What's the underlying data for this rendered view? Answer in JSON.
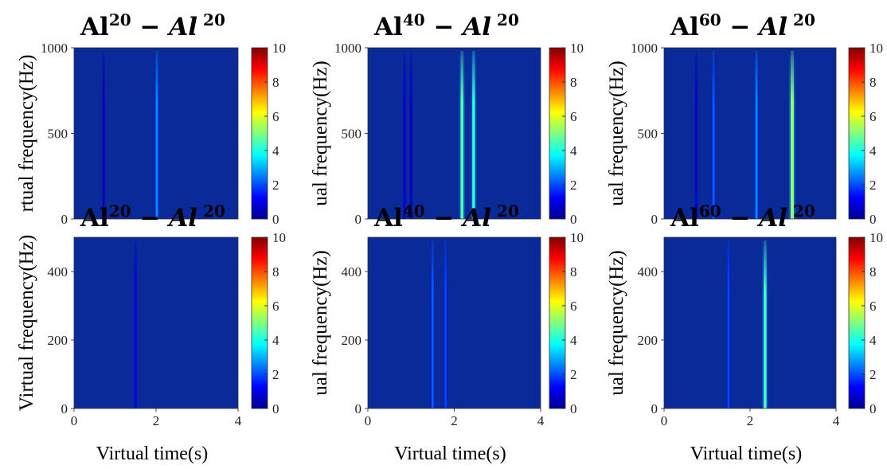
{
  "chart_data": [
    {
      "type": "heatmap",
      "title": {
        "base": "Al",
        "sup": "20",
        "dash": "−",
        "base2": "Al",
        "sup2": "20"
      },
      "ylabel": "rtual frequency(Hz)",
      "xlabel": "",
      "x_ticks": [],
      "y_ticks": [
        "0",
        "500",
        "1000"
      ],
      "ylim": [
        0,
        1000
      ],
      "xlim": [
        0,
        4
      ],
      "colorbar": {
        "min": 0,
        "max": 10,
        "ticks": [
          "0",
          "2",
          "4",
          "6",
          "8",
          "10"
        ]
      },
      "lines": [
        {
          "t": 0.72,
          "intensity": 0.6
        },
        {
          "t": 2.02,
          "intensity": 2.6
        }
      ]
    },
    {
      "type": "heatmap",
      "title": {
        "base": "Al",
        "sup": "40",
        "dash": "−",
        "base2": "Al",
        "sup2": "20"
      },
      "ylabel": "ual frequency(Hz)",
      "xlabel": "",
      "x_ticks": [],
      "y_ticks": [
        "0",
        "500",
        "1000"
      ],
      "ylim": [
        0,
        1000
      ],
      "xlim": [
        0,
        4
      ],
      "colorbar": {
        "min": 0,
        "max": 10,
        "ticks": [
          "0",
          "2",
          "4",
          "6",
          "8",
          "10"
        ]
      },
      "lines": [
        {
          "t": 0.85,
          "intensity": 0.9
        },
        {
          "t": 1.0,
          "intensity": 0.7
        },
        {
          "t": 2.18,
          "intensity": 4.6
        },
        {
          "t": 2.45,
          "intensity": 4.2
        }
      ]
    },
    {
      "type": "heatmap",
      "title": {
        "base": "Al",
        "sup": "60",
        "dash": "−",
        "base2": "Al",
        "sup2": "20"
      },
      "ylabel": "ual frequency(Hz)",
      "xlabel": "",
      "x_ticks": [],
      "y_ticks": [
        "0",
        "500",
        "1000"
      ],
      "ylim": [
        0,
        1000
      ],
      "xlim": [
        0,
        4
      ],
      "colorbar": {
        "min": 0,
        "max": 10,
        "ticks": [
          "0",
          "2",
          "4",
          "6",
          "8",
          "10"
        ]
      },
      "lines": [
        {
          "t": 0.75,
          "intensity": 0.8
        },
        {
          "t": 1.15,
          "intensity": 2.2
        },
        {
          "t": 2.15,
          "intensity": 2.6
        },
        {
          "t": 2.98,
          "intensity": 5.2
        }
      ]
    },
    {
      "type": "heatmap",
      "title": {
        "base": "Al",
        "sup": "20",
        "dash": "−",
        "base2": "Al",
        "sup2": "20"
      },
      "ylabel": "Virtual frequency(Hz)",
      "xlabel": "Virtual time(s)",
      "x_ticks": [
        "0",
        "2",
        "4"
      ],
      "y_ticks": [
        "0",
        "200",
        "400"
      ],
      "ylim": [
        0,
        500
      ],
      "xlim": [
        0,
        4
      ],
      "colorbar": {
        "min": 0,
        "max": 10,
        "ticks": [
          "0",
          "2",
          "4",
          "6",
          "8",
          "10"
        ]
      },
      "lines": [
        {
          "t": 1.5,
          "intensity": 0.9
        }
      ]
    },
    {
      "type": "heatmap",
      "title": {
        "base": "Al",
        "sup": "40",
        "dash": "−",
        "base2": "Al",
        "sup2": "20"
      },
      "ylabel": "ual frequency(Hz)",
      "xlabel": "Virtual time(s)",
      "x_ticks": [
        "0",
        "2",
        "4"
      ],
      "y_ticks": [
        "0",
        "200",
        "400"
      ],
      "ylim": [
        0,
        500
      ],
      "xlim": [
        0,
        4
      ],
      "colorbar": {
        "min": 0,
        "max": 10,
        "ticks": [
          "0",
          "2",
          "4",
          "6",
          "8",
          "10"
        ]
      },
      "lines": [
        {
          "t": 1.5,
          "intensity": 2.2
        },
        {
          "t": 1.8,
          "intensity": 2.0
        }
      ]
    },
    {
      "type": "heatmap",
      "title": {
        "base": "Al",
        "sup": "60",
        "dash": "−",
        "base2": "Al",
        "sup2": "20"
      },
      "ylabel": "ual frequency(Hz)",
      "xlabel": "Virtual time(s)",
      "x_ticks": [
        "0",
        "2",
        "4"
      ],
      "y_ticks": [
        "0",
        "200",
        "400"
      ],
      "ylim": [
        0,
        500
      ],
      "xlim": [
        0,
        4
      ],
      "colorbar": {
        "min": 0,
        "max": 10,
        "ticks": [
          "0",
          "2",
          "4",
          "6",
          "8",
          "10"
        ]
      },
      "lines": [
        {
          "t": 1.5,
          "intensity": 2.0
        },
        {
          "t": 2.35,
          "intensity": 4.4
        }
      ]
    }
  ]
}
